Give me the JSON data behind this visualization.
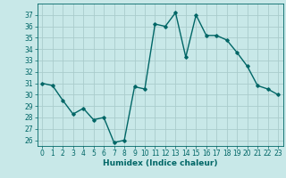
{
  "x": [
    0,
    1,
    2,
    3,
    4,
    5,
    6,
    7,
    8,
    9,
    10,
    11,
    12,
    13,
    14,
    15,
    16,
    17,
    18,
    19,
    20,
    21,
    22,
    23
  ],
  "y": [
    31,
    30.8,
    29.5,
    28.3,
    28.8,
    27.8,
    28.0,
    25.8,
    26.0,
    30.7,
    30.5,
    36.2,
    36.0,
    37.2,
    33.3,
    37.0,
    35.2,
    35.2,
    34.8,
    33.7,
    32.5,
    30.8,
    30.5,
    30.0
  ],
  "line_color": "#006666",
  "bg_color": "#c8e8e8",
  "grid_color": "#aacccc",
  "xlabel": "Humidex (Indice chaleur)",
  "ylabel": "",
  "ylim": [
    25.5,
    38
  ],
  "xlim": [
    -0.5,
    23.5
  ],
  "yticks": [
    26,
    27,
    28,
    29,
    30,
    31,
    32,
    33,
    34,
    35,
    36,
    37
  ],
  "xticks": [
    0,
    1,
    2,
    3,
    4,
    5,
    6,
    7,
    8,
    9,
    10,
    11,
    12,
    13,
    14,
    15,
    16,
    17,
    18,
    19,
    20,
    21,
    22,
    23
  ],
  "marker": "D",
  "markersize": 1.8,
  "linewidth": 1.0,
  "xlabel_fontsize": 6.5,
  "tick_fontsize": 5.5
}
